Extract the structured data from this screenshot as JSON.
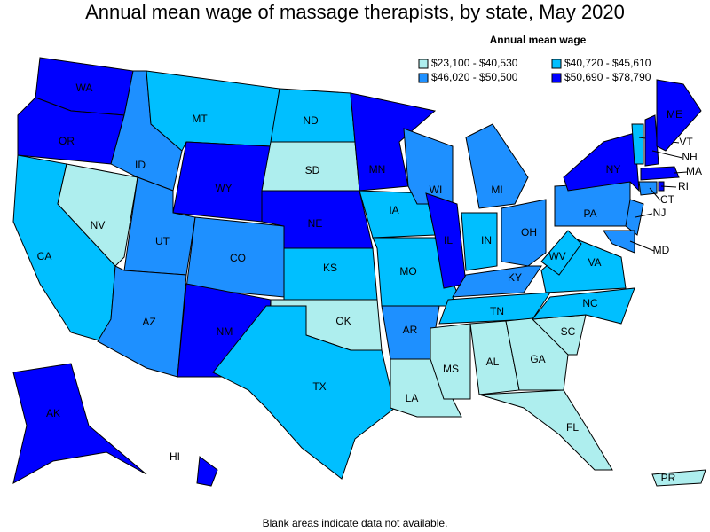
{
  "title": "Annual mean wage of massage therapists, by state, May 2020",
  "legend": {
    "title": "Annual mean wage",
    "items": [
      {
        "label": "$23,100 - $40,530",
        "color": "#aeeeee"
      },
      {
        "label": "$40,720 - $45,610",
        "color": "#00bfff"
      },
      {
        "label": "$46,020 - $50,500",
        "color": "#1e90ff"
      },
      {
        "label": "$50,690 - $78,790",
        "color": "#0000ff"
      }
    ]
  },
  "states": [
    {
      "label": "WA",
      "color": "#0000ff"
    },
    {
      "label": "OR",
      "color": "#0000ff"
    },
    {
      "label": "CA",
      "color": "#00bfff"
    },
    {
      "label": "NV",
      "color": "#aeeeee"
    },
    {
      "label": "ID",
      "color": "#1e90ff"
    },
    {
      "label": "MT",
      "color": "#00bfff"
    },
    {
      "label": "WY",
      "color": "#0000ff"
    },
    {
      "label": "UT",
      "color": "#1e90ff"
    },
    {
      "label": "CO",
      "color": "#1e90ff"
    },
    {
      "label": "AZ",
      "color": "#1e90ff"
    },
    {
      "label": "NM",
      "color": "#0000ff"
    },
    {
      "label": "ND",
      "color": "#00bfff"
    },
    {
      "label": "SD",
      "color": "#aeeeee"
    },
    {
      "label": "NE",
      "color": "#0000ff"
    },
    {
      "label": "KS",
      "color": "#00bfff"
    },
    {
      "label": "OK",
      "color": "#aeeeee"
    },
    {
      "label": "TX",
      "color": "#00bfff"
    },
    {
      "label": "MN",
      "color": "#0000ff"
    },
    {
      "label": "IA",
      "color": "#00bfff"
    },
    {
      "label": "MO",
      "color": "#00bfff"
    },
    {
      "label": "AR",
      "color": "#1e90ff"
    },
    {
      "label": "LA",
      "color": "#aeeeee"
    },
    {
      "label": "WI",
      "color": "#1e90ff"
    },
    {
      "label": "IL",
      "color": "#0000ff"
    },
    {
      "label": "MI",
      "color": "#1e90ff"
    },
    {
      "label": "IN",
      "color": "#00bfff"
    },
    {
      "label": "OH",
      "color": "#1e90ff"
    },
    {
      "label": "KY",
      "color": "#1e90ff"
    },
    {
      "label": "TN",
      "color": "#00bfff"
    },
    {
      "label": "MS",
      "color": "#aeeeee"
    },
    {
      "label": "AL",
      "color": "#aeeeee"
    },
    {
      "label": "GA",
      "color": "#aeeeee"
    },
    {
      "label": "FL",
      "color": "#aeeeee"
    },
    {
      "label": "SC",
      "color": "#aeeeee"
    },
    {
      "label": "NC",
      "color": "#00bfff"
    },
    {
      "label": "VA",
      "color": "#00bfff"
    },
    {
      "label": "WV",
      "color": "#00bfff"
    },
    {
      "label": "PA",
      "color": "#1e90ff"
    },
    {
      "label": "NY",
      "color": "#0000ff"
    },
    {
      "label": "NJ",
      "color": "#1e90ff"
    },
    {
      "label": "MD",
      "color": "#1e90ff"
    },
    {
      "label": "CT",
      "color": "#1e90ff"
    },
    {
      "label": "RI",
      "color": "#0000ff"
    },
    {
      "label": "MA",
      "color": "#0000ff"
    },
    {
      "label": "VT",
      "color": "#00bfff"
    },
    {
      "label": "NH",
      "color": "#0000ff"
    },
    {
      "label": "ME",
      "color": "#0000ff"
    },
    {
      "label": "AK",
      "color": "#0000ff"
    },
    {
      "label": "HI",
      "color": "#0000ff"
    },
    {
      "label": "PR",
      "color": "#aeeeee"
    }
  ],
  "note": "Blank areas indicate data not available."
}
